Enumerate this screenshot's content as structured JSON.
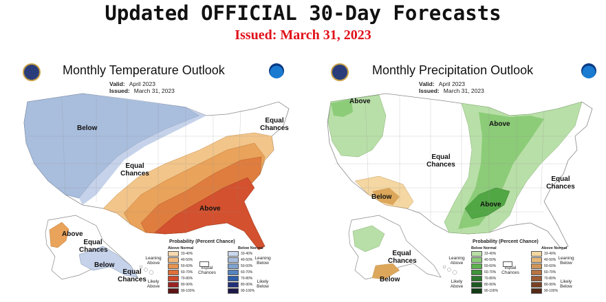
{
  "header": {
    "title": "Updated OFFICIAL 30-Day Forecasts",
    "issued": "Issued: March 31, 2023"
  },
  "temperature": {
    "title": "Monthly Temperature Outlook",
    "valid_label": "Valid:",
    "valid_value": "April 2023",
    "issued_label": "Issued:",
    "issued_value": "March 31, 2023",
    "labels": {
      "below": "Below",
      "equal_chances_ne": "Equal Chances",
      "equal_chances_central": "Equal Chances",
      "above": "Above",
      "ak_above": "Above",
      "ak_equal": "Equal Chances",
      "ak_below": "Below",
      "ak_equal_2": "Equal Chances"
    },
    "colors": {
      "below1": "#a9bedd",
      "below2": "#c5d2ea",
      "above1": "#f2c58a",
      "above2": "#e9a35b",
      "above3": "#df7d3f",
      "above4": "#d3512e"
    }
  },
  "precipitation": {
    "title": "Monthly Precipitation Outlook",
    "valid_label": "Valid:",
    "valid_value": "April 2023",
    "issued_label": "Issued:",
    "issued_value": "March 31, 2023",
    "labels": {
      "above_nw": "Above",
      "above_ne": "Above",
      "equal_chances_central": "Equal Chances",
      "equal_chances_east": "Equal Chances",
      "below_sw": "Below",
      "above_se": "Above",
      "ak_equal": "Equal Chances",
      "ak_below": "Below"
    },
    "colors": {
      "above1": "#b9dfa8",
      "above2": "#8ccc78",
      "above3": "#52a745",
      "below1": "#f4d7a2",
      "below2": "#dca75b"
    }
  },
  "legend": {
    "title": "Probability (Percent Chance)",
    "temp": {
      "left_head": "Above Normal",
      "right_head": "Below Normal",
      "leaning_left": "Leaning Above",
      "likely_left": "Likely Above",
      "leaning_right": "Leaning Below",
      "likely_right": "Likely Below",
      "equal": "Equal Chances",
      "left_ranges": [
        "33-40%",
        "40-50%",
        "50-60%",
        "60-70%",
        "70-80%",
        "80-90%",
        "90-100%"
      ],
      "right_ranges": [
        "33-40%",
        "40-50%",
        "50-60%",
        "60-70%",
        "70-80%",
        "80-90%",
        "90-100%"
      ],
      "left_colors": [
        "#f7d9b0",
        "#f0b77e",
        "#e69452",
        "#de6f3a",
        "#cf4a2b",
        "#9a2421",
        "#5e1313"
      ],
      "right_colors": [
        "#c9d7ec",
        "#a9bedd",
        "#7fa3cd",
        "#5584bf",
        "#2e5ea8",
        "#21307a",
        "#1c1848"
      ]
    },
    "precip": {
      "left_head": "Below Normal",
      "right_head": "Above Normal",
      "leaning_left": "Leaning Above",
      "likely_left": "Likely Above",
      "leaning_right": "Leaning Below",
      "likely_right": "Likely Below",
      "equal": "Equal Chances",
      "left_ranges": [
        "33-40%",
        "40-50%",
        "50-60%",
        "60-70%",
        "70-80%",
        "80-90%",
        "90-100%"
      ],
      "right_ranges": [
        "33-40%",
        "40-50%",
        "50-60%",
        "60-70%",
        "70-80%",
        "80-90%",
        "90-100%"
      ],
      "left_colors": [
        "#b9dfa8",
        "#8ccc78",
        "#5db24f",
        "#3f9339",
        "#2c7a2c",
        "#1e5a22",
        "#123c16"
      ],
      "right_colors": [
        "#f4d7a2",
        "#e6b879",
        "#d0955a",
        "#b77442",
        "#9c5a32",
        "#7a4023",
        "#552a17"
      ]
    }
  }
}
